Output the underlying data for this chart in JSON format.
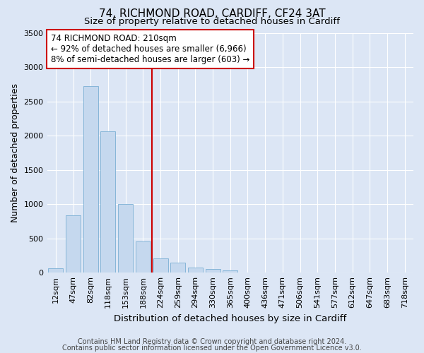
{
  "title": "74, RICHMOND ROAD, CARDIFF, CF24 3AT",
  "subtitle": "Size of property relative to detached houses in Cardiff",
  "xlabel": "Distribution of detached houses by size in Cardiff",
  "ylabel": "Number of detached properties",
  "categories": [
    "12sqm",
    "47sqm",
    "82sqm",
    "118sqm",
    "153sqm",
    "188sqm",
    "224sqm",
    "259sqm",
    "294sqm",
    "330sqm",
    "365sqm",
    "400sqm",
    "436sqm",
    "471sqm",
    "506sqm",
    "541sqm",
    "577sqm",
    "612sqm",
    "647sqm",
    "683sqm",
    "718sqm"
  ],
  "values": [
    60,
    840,
    2720,
    2060,
    1000,
    460,
    210,
    145,
    70,
    55,
    30,
    0,
    0,
    0,
    0,
    0,
    0,
    0,
    0,
    0,
    0
  ],
  "bar_color": "#c5d8ee",
  "bar_edge_color": "#7aafd4",
  "vline_x": 6.0,
  "vline_color": "#cc0000",
  "annotation_line1": "74 RICHMOND ROAD: 210sqm",
  "annotation_line2": "← 92% of detached houses are smaller (6,966)",
  "annotation_line3": "8% of semi-detached houses are larger (603) →",
  "annotation_box_color": "#ffffff",
  "annotation_box_edge": "#cc0000",
  "ylim": [
    0,
    3500
  ],
  "yticks": [
    0,
    500,
    1000,
    1500,
    2000,
    2500,
    3000,
    3500
  ],
  "footer1": "Contains HM Land Registry data © Crown copyright and database right 2024.",
  "footer2": "Contains public sector information licensed under the Open Government Licence v3.0.",
  "bg_color": "#dce6f5",
  "plot_bg_color": "#dce6f5",
  "title_fontsize": 11,
  "subtitle_fontsize": 9.5,
  "ylabel_fontsize": 9,
  "xlabel_fontsize": 9.5,
  "tick_fontsize": 8,
  "annotation_fontsize": 8.5,
  "footer_fontsize": 7
}
